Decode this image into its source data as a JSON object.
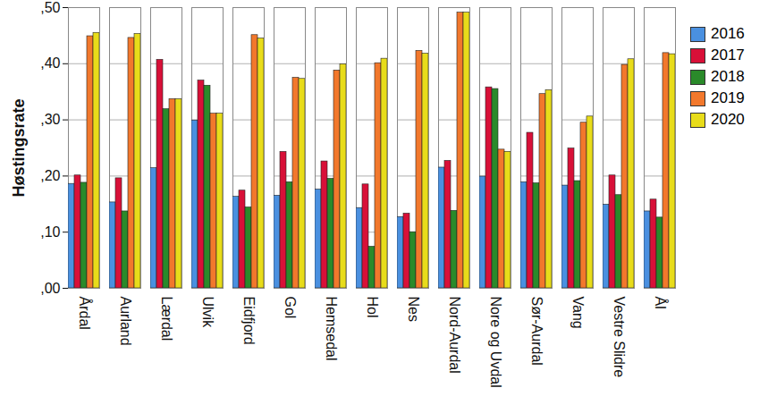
{
  "chart_data": {
    "type": "bar",
    "y_label": "Høstingsrate",
    "categories": [
      "Årdal",
      "Aurland",
      "Lærdal",
      "Ulvik",
      "Eidfjord",
      "Gol",
      "Hemsedal",
      "Hol",
      "Nes",
      "Nord-Aurdal",
      "Nore og Uvdal",
      "Sør-Aurdal",
      "Vang",
      "Vestre Slidre",
      "Ål"
    ],
    "series": [
      {
        "name": "2016",
        "color": "#4a90e0",
        "values": [
          0.186,
          0.153,
          0.214,
          0.299,
          0.163,
          0.165,
          0.176,
          0.143,
          0.127,
          0.215,
          0.199,
          0.189,
          0.183,
          0.149,
          0.137
        ]
      },
      {
        "name": "2017",
        "color": "#d81038",
        "values": [
          0.201,
          0.196,
          0.407,
          0.37,
          0.174,
          0.243,
          0.226,
          0.185,
          0.133,
          0.227,
          0.358,
          0.277,
          0.249,
          0.201,
          0.158
        ]
      },
      {
        "name": "2018",
        "color": "#2a8a2a",
        "values": [
          0.188,
          0.137,
          0.319,
          0.361,
          0.144,
          0.189,
          0.195,
          0.074,
          0.1,
          0.138,
          0.355,
          0.187,
          0.191,
          0.166,
          0.126
        ]
      },
      {
        "name": "2019",
        "color": "#f2782c",
        "values": [
          0.449,
          0.446,
          0.337,
          0.311,
          0.451,
          0.375,
          0.388,
          0.401,
          0.423,
          0.491,
          0.247,
          0.346,
          0.295,
          0.398,
          0.419
        ]
      },
      {
        "name": "2020",
        "color": "#e8dc1a",
        "values": [
          0.455,
          0.453,
          0.337,
          0.311,
          0.445,
          0.373,
          0.399,
          0.409,
          0.418,
          0.491,
          0.243,
          0.353,
          0.306,
          0.408,
          0.417
        ]
      }
    ],
    "ylim": [
      0,
      0.5
    ],
    "yticks": [
      {
        "value": 0,
        "label": ",00"
      },
      {
        "value": 0.1,
        "label": ",10"
      },
      {
        "value": 0.2,
        "label": ",20"
      },
      {
        "value": 0.3,
        "label": ",30"
      },
      {
        "value": 0.4,
        "label": ",40"
      },
      {
        "value": 0.5,
        "label": ",50"
      }
    ],
    "grid": true,
    "legend": "top-right"
  }
}
